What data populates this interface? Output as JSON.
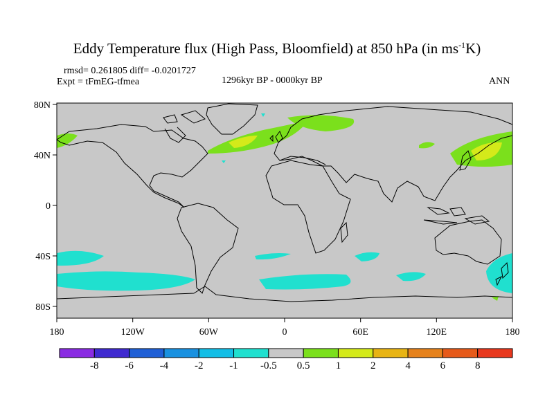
{
  "title": {
    "main": "Eddy Temperature flux (High Pass, Bloomfield) at 850 hPa (in ms",
    "sup": "-1",
    "end": "K)"
  },
  "stats": {
    "rmsd": "rmsd= 0.261805 diff= -0.0201727",
    "expt": "Expt = tFmEG-tfmea"
  },
  "period": "1296kyr BP - 0000kyr BP",
  "season": "ANN",
  "axes": {
    "lon_ticks": [
      "180",
      "120W",
      "60W",
      "0",
      "60E",
      "120E",
      "180"
    ],
    "lat_ticks": [
      "80N",
      "40N",
      "0",
      "40S",
      "80S"
    ]
  },
  "colorbar": {
    "labels": [
      "-8",
      "-6",
      "-4",
      "-2",
      "-1",
      "-0.5",
      "0.5",
      "1",
      "2",
      "4",
      "6",
      "8"
    ],
    "colors": [
      "#8a2be2",
      "#3f2ad0",
      "#1f5fd6",
      "#1991e0",
      "#13bee6",
      "#20e0cf",
      "#c8c8c8",
      "#7be01c",
      "#d4ea1a",
      "#e8b414",
      "#e6821c",
      "#e65a1a",
      "#e8381e"
    ]
  },
  "colors": {
    "land_fill": "#c8c8c8",
    "cyan": "#20e0cf",
    "green": "#7be01c",
    "yellow_green": "#d4ea1a"
  }
}
